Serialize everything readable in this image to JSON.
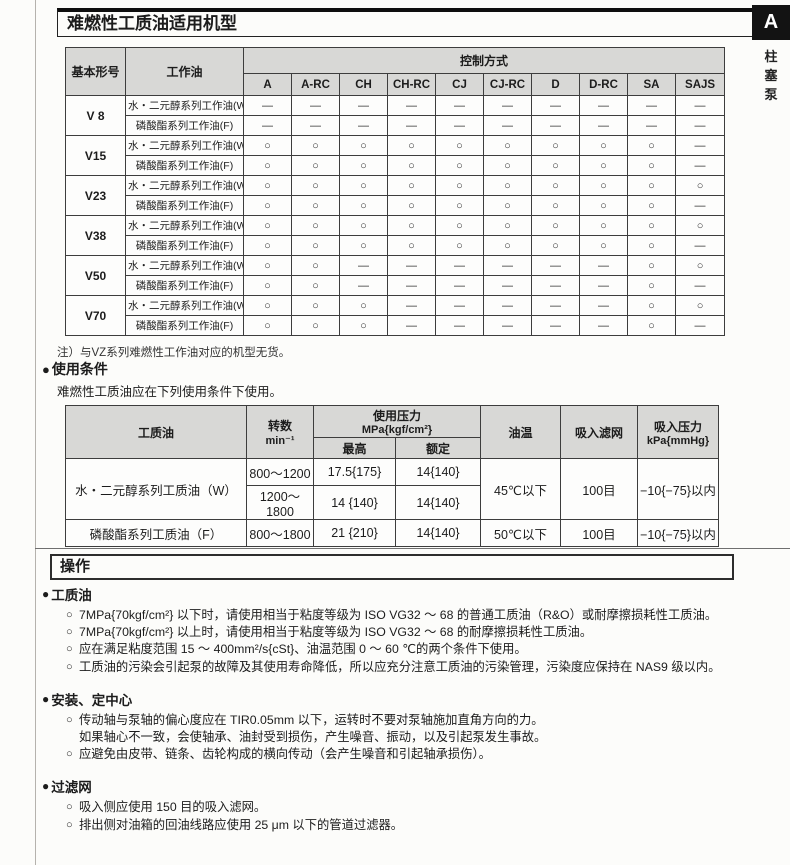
{
  "page_title": "难燃性工质油适用机型",
  "sidebar": {
    "tab_label": "A",
    "category_label": "柱塞泵"
  },
  "model_table": {
    "col_model": "基本形号",
    "col_oil": "工作油",
    "col_control": "控制方式",
    "control_types": [
      "A",
      "A-RC",
      "CH",
      "CH-RC",
      "CJ",
      "CJ-RC",
      "D",
      "D-RC",
      "SA",
      "SAJS"
    ],
    "rows": [
      {
        "model": "V 8",
        "oils": [
          {
            "label": "水・二元醇系列工作油(W)",
            "cells": [
              "—",
              "—",
              "—",
              "—",
              "—",
              "—",
              "—",
              "—",
              "—",
              "—"
            ]
          },
          {
            "label": "磷酸酯系列工作油(F)",
            "cells": [
              "—",
              "—",
              "—",
              "—",
              "—",
              "—",
              "—",
              "—",
              "—",
              "—"
            ]
          }
        ]
      },
      {
        "model": "V15",
        "oils": [
          {
            "label": "水・二元醇系列工作油(W)",
            "cells": [
              "○",
              "○",
              "○",
              "○",
              "○",
              "○",
              "○",
              "○",
              "○",
              "—"
            ]
          },
          {
            "label": "磷酸酯系列工作油(F)",
            "cells": [
              "○",
              "○",
              "○",
              "○",
              "○",
              "○",
              "○",
              "○",
              "○",
              "—"
            ]
          }
        ]
      },
      {
        "model": "V23",
        "oils": [
          {
            "label": "水・二元醇系列工作油(W)",
            "cells": [
              "○",
              "○",
              "○",
              "○",
              "○",
              "○",
              "○",
              "○",
              "○",
              "○"
            ]
          },
          {
            "label": "磷酸酯系列工作油(F)",
            "cells": [
              "○",
              "○",
              "○",
              "○",
              "○",
              "○",
              "○",
              "○",
              "○",
              "—"
            ]
          }
        ]
      },
      {
        "model": "V38",
        "oils": [
          {
            "label": "水・二元醇系列工作油(W)",
            "cells": [
              "○",
              "○",
              "○",
              "○",
              "○",
              "○",
              "○",
              "○",
              "○",
              "○"
            ]
          },
          {
            "label": "磷酸酯系列工作油(F)",
            "cells": [
              "○",
              "○",
              "○",
              "○",
              "○",
              "○",
              "○",
              "○",
              "○",
              "—"
            ]
          }
        ]
      },
      {
        "model": "V50",
        "oils": [
          {
            "label": "水・二元醇系列工作油(W)",
            "cells": [
              "○",
              "○",
              "—",
              "—",
              "—",
              "—",
              "—",
              "—",
              "○",
              "○"
            ]
          },
          {
            "label": "磷酸酯系列工作油(F)",
            "cells": [
              "○",
              "○",
              "—",
              "—",
              "—",
              "—",
              "—",
              "—",
              "○",
              "—"
            ]
          }
        ]
      },
      {
        "model": "V70",
        "oils": [
          {
            "label": "水・二元醇系列工作油(W)",
            "cells": [
              "○",
              "○",
              "○",
              "—",
              "—",
              "—",
              "—",
              "—",
              "○",
              "○"
            ]
          },
          {
            "label": "磷酸酯系列工作油(F)",
            "cells": [
              "○",
              "○",
              "○",
              "—",
              "—",
              "—",
              "—",
              "—",
              "○",
              "—"
            ]
          }
        ]
      }
    ],
    "note": "注）与VZ系列难燃性工作油对应的机型无货。"
  },
  "usage": {
    "heading": "使用条件",
    "intro": "难燃性工质油应在下列使用条件下使用。",
    "table": {
      "col_fluid": "工质油",
      "col_speed": "转数",
      "col_speed_unit": "min⁻¹",
      "col_pressure": "使用压力",
      "col_pressure_unit": "MPa{kgf/cm²}",
      "col_pressure_max": "最高",
      "col_pressure_rated": "额定",
      "col_temp": "油温",
      "col_strainer": "吸入滤网",
      "col_suction": "吸入压力",
      "col_suction_unit": "kPa{mmHg}",
      "rows": [
        {
          "fluid": "水・二元醇系列工质油（W）",
          "speeds": [
            {
              "speed": "800～1200",
              "max": "17.5{175}",
              "rated": "14{140}"
            },
            {
              "speed": "1200～1800",
              "max": "14 {140}",
              "rated": "14{140}"
            }
          ],
          "temp": "45℃以下",
          "strainer": "100目",
          "suction": "−10{−75}以内"
        },
        {
          "fluid": "磷酸酯系列工质油（F）",
          "speeds": [
            {
              "speed": "800～1800",
              "max": "21 {210}",
              "rated": "14{140}"
            }
          ],
          "temp": "50℃以下",
          "strainer": "100目",
          "suction": "−10{−75}以内"
        }
      ]
    }
  },
  "operation": {
    "title": "操作",
    "groups": [
      {
        "heading": "工质油",
        "items": [
          "7MPa{70kgf/cm²} 以下时，请使用相当于粘度等级为 ISO VG32 ～ 68 的普通工质油（R&O）或耐摩擦损耗性工质油。",
          "7MPa{70kgf/cm²} 以上时，请使用相当于粘度等级为 ISO VG32 ～ 68 的耐摩擦损耗性工质油。",
          "应在满足粘度范围 15 ～ 400mm²/s{cSt}、油温范围 0 ～ 60 ℃的两个条件下使用。",
          "工质油的污染会引起泵的故障及其使用寿命降低，所以应充分注意工质油的污染管理，污染度应保持在 NAS9 级以内。"
        ]
      },
      {
        "heading": "安装、定中心",
        "items": [
          "传动轴与泵轴的偏心度应在 TIR0.05mm 以下，运转时不要对泵轴施加直角方向的力。\n如果轴心不一致，会使轴承、油封受到损伤，产生噪音、振动，以及引起泵发生事故。",
          "应避免由皮带、链条、齿轮构成的横向传动（会产生噪音和引起轴承损伤）。"
        ]
      },
      {
        "heading": "过滤网",
        "items": [
          "吸入侧应使用 150 目的吸入滤网。",
          "排出侧对油箱的回油线路应使用 25 μm 以下的管道过滤器。"
        ]
      }
    ]
  }
}
